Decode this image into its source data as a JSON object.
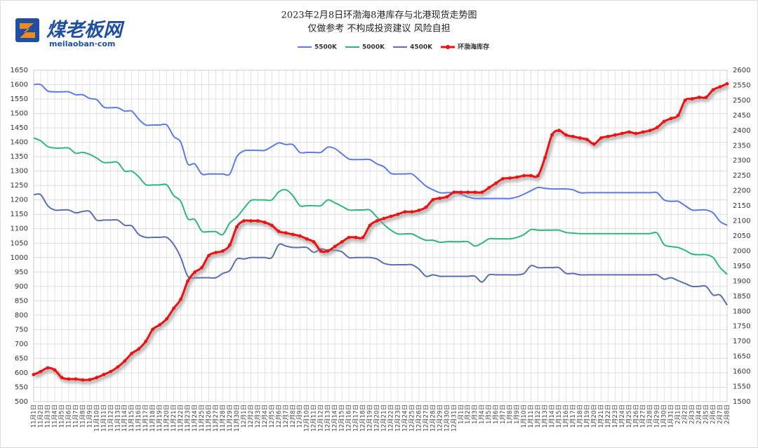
{
  "logo": {
    "name": "煤老板网",
    "url": "meilaoban·com"
  },
  "chart_data": {
    "type": "line",
    "title": "2023年2月8日环渤海8港库存与北港现货走势图",
    "subtitle": "仅做参考 不构成投资建议 风险自担",
    "categories": [
      "11月1日",
      "11月2日",
      "11月3日",
      "11月4日",
      "11月5日",
      "11月6日",
      "11月7日",
      "11月8日",
      "11月9日",
      "11月10日",
      "11月11日",
      "11月12日",
      "11月13日",
      "11月14日",
      "11月15日",
      "11月16日",
      "11月17日",
      "11月18日",
      "11月19日",
      "11月20日",
      "11月21日",
      "11月22日",
      "11月23日",
      "11月24日",
      "11月25日",
      "11月26日",
      "11月27日",
      "11月28日",
      "11月29日",
      "11月30日",
      "12月1日",
      "12月2日",
      "12月3日",
      "12月4日",
      "12月5日",
      "12月6日",
      "12月7日",
      "12月8日",
      "12月9日",
      "12月10日",
      "12月11日",
      "12月12日",
      "12月13日",
      "12月14日",
      "12月15日",
      "12月16日",
      "12月17日",
      "12月18日",
      "12月19日",
      "12月20日",
      "12月21日",
      "12月22日",
      "12月23日",
      "12月24日",
      "12月25日",
      "12月26日",
      "12月27日",
      "12月28日",
      "12月29日",
      "12月30日",
      "12月31日",
      "1月1日",
      "1月2日",
      "1月3日",
      "1月4日",
      "1月5日",
      "1月6日",
      "1月7日",
      "1月8日",
      "1月9日",
      "1月10日",
      "1月11日",
      "1月12日",
      "1月13日",
      "1月14日",
      "1月15日",
      "1月16日",
      "1月17日",
      "1月18日",
      "1月19日",
      "1月20日",
      "1月21日",
      "1月22日",
      "1月23日",
      "1月24日",
      "1月25日",
      "1月26日",
      "1月27日",
      "1月28日",
      "1月29日",
      "1月30日",
      "1月31日",
      "2月1日",
      "2月2日",
      "2月3日",
      "2月4日",
      "2月5日",
      "2月6日",
      "2月7日",
      "2月8日"
    ],
    "series": [
      {
        "name": "5500K",
        "color": "#5b7be8",
        "values": [
          1600,
          1600,
          1578,
          1575,
          1575,
          1575,
          1565,
          1565,
          1552,
          1548,
          1522,
          1520,
          1520,
          1508,
          1508,
          1480,
          1460,
          1460,
          1460,
          1460,
          1420,
          1400,
          1325,
          1325,
          1290,
          1290,
          1290,
          1290,
          1290,
          1350,
          1370,
          1372,
          1372,
          1372,
          1385,
          1398,
          1392,
          1392,
          1365,
          1365,
          1365,
          1365,
          1383,
          1378,
          1360,
          1342,
          1340,
          1340,
          1340,
          1325,
          1315,
          1292,
          1290,
          1290,
          1290,
          1270,
          1248,
          1235,
          1225,
          1225,
          1225,
          1220,
          1210,
          1205,
          1205,
          1205,
          1205,
          1205,
          1205,
          1210,
          1220,
          1232,
          1243,
          1240,
          1238,
          1238,
          1238,
          1235,
          1225,
          1225,
          1225,
          1225,
          1225,
          1225,
          1225,
          1225,
          1225,
          1225,
          1225,
          1225,
          1200,
          1195,
          1195,
          1180,
          1165,
          1165,
          1165,
          1155,
          1125,
          1112
        ]
      },
      {
        "name": "5000K",
        "color": "#2db87a",
        "values": [
          1415,
          1405,
          1385,
          1380,
          1380,
          1380,
          1362,
          1365,
          1358,
          1345,
          1330,
          1330,
          1330,
          1300,
          1300,
          1280,
          1253,
          1252,
          1252,
          1252,
          1215,
          1195,
          1135,
          1132,
          1092,
          1090,
          1090,
          1080,
          1120,
          1140,
          1170,
          1198,
          1200,
          1200,
          1200,
          1228,
          1235,
          1215,
          1180,
          1180,
          1180,
          1180,
          1200,
          1190,
          1178,
          1165,
          1165,
          1165,
          1165,
          1140,
          1115,
          1095,
          1082,
          1082,
          1082,
          1070,
          1060,
          1060,
          1053,
          1055,
          1055,
          1055,
          1055,
          1040,
          1050,
          1065,
          1065,
          1065,
          1065,
          1070,
          1080,
          1097,
          1095,
          1095,
          1095,
          1095,
          1087,
          1085,
          1083,
          1083,
          1083,
          1083,
          1083,
          1083,
          1083,
          1083,
          1083,
          1083,
          1083,
          1085,
          1045,
          1038,
          1035,
          1025,
          1012,
          1010,
          1010,
          1000,
          965,
          942
        ]
      },
      {
        "name": "4500K",
        "color": "#5a6eb4",
        "values": [
          1218,
          1218,
          1180,
          1165,
          1165,
          1165,
          1155,
          1160,
          1160,
          1130,
          1130,
          1130,
          1130,
          1112,
          1110,
          1080,
          1070,
          1070,
          1070,
          1070,
          1045,
          1000,
          935,
          930,
          930,
          930,
          930,
          945,
          955,
          995,
          995,
          1000,
          1000,
          1000,
          1000,
          1045,
          1040,
          1035,
          1035,
          1035,
          1018,
          1030,
          1025,
          1025,
          1020,
          1000,
          1000,
          1000,
          1000,
          995,
          980,
          975,
          975,
          975,
          975,
          960,
          935,
          940,
          935,
          935,
          935,
          935,
          935,
          935,
          915,
          940,
          940,
          940,
          940,
          940,
          945,
          972,
          965,
          965,
          965,
          965,
          945,
          945,
          940,
          940,
          940,
          940,
          940,
          940,
          940,
          940,
          940,
          940,
          940,
          940,
          925,
          930,
          920,
          910,
          900,
          900,
          900,
          870,
          870,
          835
        ]
      },
      {
        "name": "环渤海库存",
        "color": "#ee1111",
        "axis": "y2",
        "markers": true,
        "values": [
          1590,
          1600,
          1612,
          1605,
          1580,
          1575,
          1575,
          1572,
          1573,
          1580,
          1590,
          1600,
          1615,
          1635,
          1660,
          1675,
          1700,
          1740,
          1755,
          1775,
          1810,
          1840,
          1900,
          1930,
          1945,
          1985,
          1995,
          2000,
          2020,
          2080,
          2100,
          2100,
          2100,
          2095,
          2085,
          2065,
          2060,
          2055,
          2050,
          2040,
          2030,
          2000,
          2000,
          2015,
          2030,
          2045,
          2045,
          2045,
          2085,
          2100,
          2108,
          2115,
          2122,
          2130,
          2130,
          2135,
          2145,
          2170,
          2175,
          2180,
          2195,
          2195,
          2195,
          2195,
          2195,
          2210,
          2225,
          2240,
          2242,
          2245,
          2250,
          2250,
          2250,
          2310,
          2385,
          2400,
          2385,
          2380,
          2375,
          2370,
          2355,
          2375,
          2380,
          2385,
          2390,
          2395,
          2390,
          2395,
          2400,
          2410,
          2430,
          2440,
          2450,
          2500,
          2505,
          2510,
          2510,
          2535,
          2545,
          2555
        ]
      }
    ],
    "ylim": [
      500,
      1650
    ],
    "yticks": [
      500,
      550,
      600,
      650,
      700,
      750,
      800,
      850,
      900,
      950,
      1000,
      1050,
      1100,
      1150,
      1200,
      1250,
      1300,
      1350,
      1400,
      1450,
      1500,
      1550,
      1600,
      1650
    ],
    "y2lim": [
      1500,
      2600
    ],
    "y2ticks": [
      1500,
      1550,
      1600,
      1650,
      1700,
      1750,
      1800,
      1850,
      1900,
      1950,
      2000,
      2050,
      2100,
      2150,
      2200,
      2250,
      2300,
      2350,
      2400,
      2450,
      2500,
      2550,
      2600
    ],
    "grid": true,
    "legend": "top"
  }
}
